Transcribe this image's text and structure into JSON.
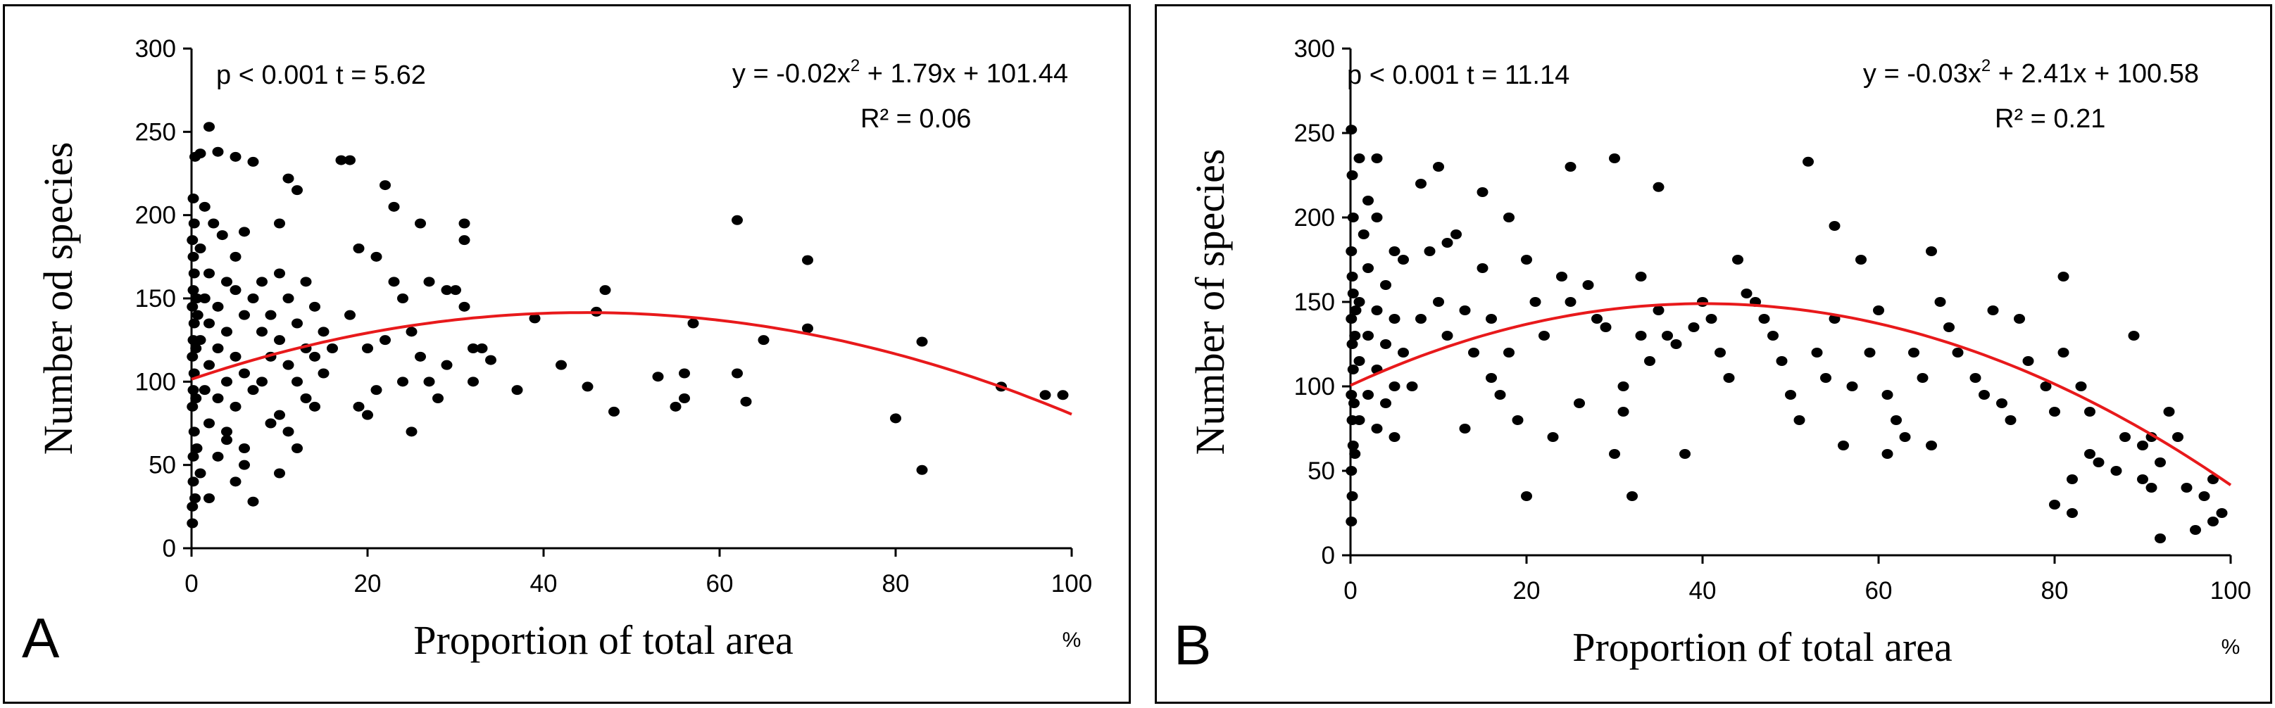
{
  "chart_data": [
    {
      "type": "scatter",
      "panel_label": "A",
      "xlabel": "Proportion of total area",
      "x_unit": "%",
      "ylabel": "Number od species",
      "xlim": [
        0,
        100
      ],
      "ylim": [
        0,
        300
      ],
      "xticks": [
        0,
        20,
        40,
        60,
        80,
        100
      ],
      "yticks": [
        0,
        50,
        100,
        150,
        200,
        250,
        300
      ],
      "stats_text": "p < 0.001   t = 5.62",
      "equation_lhs": "y = -0.02x",
      "equation_exp": "2",
      "equation_rhs": " + 1.79x + 101.44",
      "r2_text": "R² = 0.06",
      "fit": {
        "a": -0.02,
        "b": 1.79,
        "c": 101.44,
        "color": "#e8191b"
      },
      "point_color": "#000000",
      "points": [
        [
          0.1,
          15
        ],
        [
          0.1,
          25
        ],
        [
          0.2,
          40
        ],
        [
          0.2,
          55
        ],
        [
          0.3,
          70
        ],
        [
          0.1,
          85
        ],
        [
          0.2,
          95
        ],
        [
          0.3,
          105
        ],
        [
          0.1,
          115
        ],
        [
          0.2,
          125
        ],
        [
          0.3,
          135
        ],
        [
          0.1,
          145
        ],
        [
          0.2,
          155
        ],
        [
          0.3,
          165
        ],
        [
          0.2,
          175
        ],
        [
          0.1,
          185
        ],
        [
          0.3,
          195
        ],
        [
          0.2,
          210
        ],
        [
          0.4,
          235
        ],
        [
          0.5,
          90
        ],
        [
          0.5,
          120
        ],
        [
          0.6,
          150
        ],
        [
          0.6,
          60
        ],
        [
          0.4,
          30
        ],
        [
          0.7,
          140
        ],
        [
          1,
          237
        ],
        [
          2,
          253
        ],
        [
          3,
          238
        ],
        [
          5,
          235
        ],
        [
          7,
          232
        ],
        [
          1.5,
          205
        ],
        [
          2.5,
          195
        ],
        [
          1,
          180
        ],
        [
          3.5,
          188
        ],
        [
          5,
          175
        ],
        [
          6,
          190
        ],
        [
          2,
          165
        ],
        [
          4,
          160
        ],
        [
          1.5,
          150
        ],
        [
          3,
          145
        ],
        [
          5,
          155
        ],
        [
          7,
          150
        ],
        [
          2,
          135
        ],
        [
          4,
          130
        ],
        [
          6,
          140
        ],
        [
          1,
          125
        ],
        [
          3,
          120
        ],
        [
          5,
          115
        ],
        [
          2,
          110
        ],
        [
          4,
          100
        ],
        [
          6,
          105
        ],
        [
          1.5,
          95
        ],
        [
          3,
          90
        ],
        [
          5,
          85
        ],
        [
          7,
          95
        ],
        [
          2,
          75
        ],
        [
          4,
          70
        ],
        [
          6,
          60
        ],
        [
          3,
          55
        ],
        [
          1,
          45
        ],
        [
          5,
          40
        ],
        [
          2,
          30
        ],
        [
          4,
          65
        ],
        [
          6,
          50
        ],
        [
          7,
          28
        ],
        [
          8,
          130
        ],
        [
          8,
          160
        ],
        [
          8,
          100
        ],
        [
          9,
          140
        ],
        [
          9,
          75
        ],
        [
          9,
          115
        ],
        [
          10,
          195
        ],
        [
          11,
          222
        ],
        [
          12,
          215
        ],
        [
          10,
          165
        ],
        [
          11,
          150
        ],
        [
          12,
          135
        ],
        [
          13,
          160
        ],
        [
          14,
          145
        ],
        [
          10,
          125
        ],
        [
          11,
          110
        ],
        [
          12,
          100
        ],
        [
          13,
          90
        ],
        [
          14,
          115
        ],
        [
          10,
          80
        ],
        [
          11,
          70
        ],
        [
          12,
          60
        ],
        [
          13,
          120
        ],
        [
          14,
          85
        ],
        [
          10,
          45
        ],
        [
          15,
          130
        ],
        [
          16,
          120
        ],
        [
          15,
          105
        ],
        [
          17,
          233
        ],
        [
          18,
          233
        ],
        [
          18,
          140
        ],
        [
          19,
          180
        ],
        [
          19,
          85
        ],
        [
          20,
          120
        ],
        [
          20,
          80
        ],
        [
          21,
          95
        ],
        [
          21,
          175
        ],
        [
          22,
          218
        ],
        [
          22,
          125
        ],
        [
          23,
          205
        ],
        [
          23,
          160
        ],
        [
          24,
          150
        ],
        [
          24,
          100
        ],
        [
          25,
          70
        ],
        [
          25,
          130
        ],
        [
          26,
          195
        ],
        [
          26,
          115
        ],
        [
          27,
          160
        ],
        [
          27,
          100
        ],
        [
          28,
          90
        ],
        [
          29,
          155
        ],
        [
          29,
          110
        ],
        [
          30,
          155
        ],
        [
          31,
          185
        ],
        [
          31,
          195
        ],
        [
          31,
          145
        ],
        [
          32,
          120
        ],
        [
          32,
          100
        ],
        [
          33,
          120
        ],
        [
          34,
          113
        ],
        [
          37,
          95
        ],
        [
          39,
          138
        ],
        [
          42,
          110
        ],
        [
          45,
          97
        ],
        [
          46,
          142
        ],
        [
          47,
          155
        ],
        [
          48,
          82
        ],
        [
          53,
          103
        ],
        [
          55,
          85
        ],
        [
          56,
          90
        ],
        [
          56,
          105
        ],
        [
          57,
          135
        ],
        [
          62,
          197
        ],
        [
          62,
          105
        ],
        [
          63,
          88
        ],
        [
          65,
          125
        ],
        [
          70,
          173
        ],
        [
          70,
          132
        ],
        [
          80,
          78
        ],
        [
          83,
          47
        ],
        [
          83,
          124
        ],
        [
          92,
          97
        ],
        [
          97,
          92
        ],
        [
          99,
          92
        ]
      ]
    },
    {
      "type": "scatter",
      "panel_label": "B",
      "xlabel": "Proportion of total area",
      "x_unit": "%",
      "ylabel": "Number of species",
      "xlim": [
        0,
        100
      ],
      "ylim": [
        0,
        300
      ],
      "xticks": [
        0,
        20,
        40,
        60,
        80,
        100
      ],
      "yticks": [
        0,
        50,
        100,
        150,
        200,
        250,
        300
      ],
      "stats_text": "p < 0.001   t = 11.14",
      "equation_lhs": "y = -0.03x",
      "equation_exp": "2",
      "equation_rhs": " + 2.41x + 100.58",
      "r2_text": "R² = 0.21",
      "fit": {
        "a": -0.03,
        "b": 2.41,
        "c": 100.58,
        "color": "#e8191b"
      },
      "point_color": "#000000",
      "points": [
        [
          0.1,
          20
        ],
        [
          0.2,
          35
        ],
        [
          0.1,
          50
        ],
        [
          0.3,
          65
        ],
        [
          0.2,
          80
        ],
        [
          0.1,
          95
        ],
        [
          0.3,
          110
        ],
        [
          0.2,
          125
        ],
        [
          0.1,
          140
        ],
        [
          0.3,
          155
        ],
        [
          0.2,
          165
        ],
        [
          0.1,
          180
        ],
        [
          0.3,
          200
        ],
        [
          0.2,
          225
        ],
        [
          0.1,
          252
        ],
        [
          0.4,
          90
        ],
        [
          0.5,
          130
        ],
        [
          0.5,
          60
        ],
        [
          0.6,
          145
        ],
        [
          1,
          235
        ],
        [
          2,
          210
        ],
        [
          3,
          235
        ],
        [
          1.5,
          190
        ],
        [
          3,
          200
        ],
        [
          5,
          180
        ],
        [
          2,
          170
        ],
        [
          4,
          160
        ],
        [
          6,
          175
        ],
        [
          1,
          150
        ],
        [
          3,
          145
        ],
        [
          5,
          140
        ],
        [
          2,
          130
        ],
        [
          4,
          125
        ],
        [
          6,
          120
        ],
        [
          1,
          115
        ],
        [
          3,
          110
        ],
        [
          5,
          100
        ],
        [
          2,
          95
        ],
        [
          4,
          90
        ],
        [
          1,
          80
        ],
        [
          3,
          75
        ],
        [
          5,
          70
        ],
        [
          7,
          100
        ],
        [
          8,
          220
        ],
        [
          8,
          140
        ],
        [
          9,
          180
        ],
        [
          10,
          230
        ],
        [
          10,
          150
        ],
        [
          11,
          130
        ],
        [
          11,
          185
        ],
        [
          12,
          190
        ],
        [
          13,
          145
        ],
        [
          13,
          75
        ],
        [
          14,
          120
        ],
        [
          15,
          215
        ],
        [
          15,
          170
        ],
        [
          16,
          140
        ],
        [
          16,
          105
        ],
        [
          17,
          95
        ],
        [
          18,
          200
        ],
        [
          18,
          120
        ],
        [
          19,
          80
        ],
        [
          20,
          35
        ],
        [
          20,
          175
        ],
        [
          21,
          150
        ],
        [
          22,
          130
        ],
        [
          23,
          70
        ],
        [
          24,
          165
        ],
        [
          25,
          230
        ],
        [
          25,
          150
        ],
        [
          26,
          90
        ],
        [
          27,
          160
        ],
        [
          28,
          140
        ],
        [
          29,
          135
        ],
        [
          30,
          235
        ],
        [
          30,
          60
        ],
        [
          31,
          85
        ],
        [
          31,
          100
        ],
        [
          32,
          35
        ],
        [
          33,
          130
        ],
        [
          33,
          165
        ],
        [
          34,
          115
        ],
        [
          35,
          218
        ],
        [
          35,
          145
        ],
        [
          36,
          130
        ],
        [
          37,
          125
        ],
        [
          38,
          60
        ],
        [
          39,
          135
        ],
        [
          40,
          150
        ],
        [
          41,
          140
        ],
        [
          42,
          120
        ],
        [
          43,
          105
        ],
        [
          44,
          175
        ],
        [
          45,
          155
        ],
        [
          46,
          150
        ],
        [
          47,
          140
        ],
        [
          48,
          130
        ],
        [
          49,
          115
        ],
        [
          50,
          95
        ],
        [
          51,
          80
        ],
        [
          52,
          233
        ],
        [
          53,
          120
        ],
        [
          54,
          105
        ],
        [
          55,
          195
        ],
        [
          55,
          140
        ],
        [
          56,
          65
        ],
        [
          57,
          100
        ],
        [
          58,
          175
        ],
        [
          59,
          120
        ],
        [
          60,
          145
        ],
        [
          61,
          60
        ],
        [
          61,
          95
        ],
        [
          62,
          80
        ],
        [
          63,
          70
        ],
        [
          64,
          120
        ],
        [
          65,
          105
        ],
        [
          66,
          65
        ],
        [
          66,
          180
        ],
        [
          67,
          150
        ],
        [
          68,
          135
        ],
        [
          69,
          120
        ],
        [
          71,
          105
        ],
        [
          72,
          95
        ],
        [
          73,
          145
        ],
        [
          74,
          90
        ],
        [
          75,
          80
        ],
        [
          76,
          140
        ],
        [
          77,
          115
        ],
        [
          79,
          100
        ],
        [
          80,
          85
        ],
        [
          80,
          30
        ],
        [
          81,
          165
        ],
        [
          81,
          120
        ],
        [
          82,
          45
        ],
        [
          82,
          25
        ],
        [
          83,
          100
        ],
        [
          84,
          85
        ],
        [
          84,
          60
        ],
        [
          85,
          55
        ],
        [
          87,
          50
        ],
        [
          88,
          70
        ],
        [
          89,
          130
        ],
        [
          90,
          65
        ],
        [
          90,
          45
        ],
        [
          91,
          40
        ],
        [
          91,
          70
        ],
        [
          92,
          55
        ],
        [
          92,
          10
        ],
        [
          93,
          85
        ],
        [
          94,
          70
        ],
        [
          95,
          40
        ],
        [
          96,
          15
        ],
        [
          97,
          35
        ],
        [
          98,
          20
        ],
        [
          98,
          45
        ],
        [
          99,
          25
        ]
      ]
    }
  ]
}
